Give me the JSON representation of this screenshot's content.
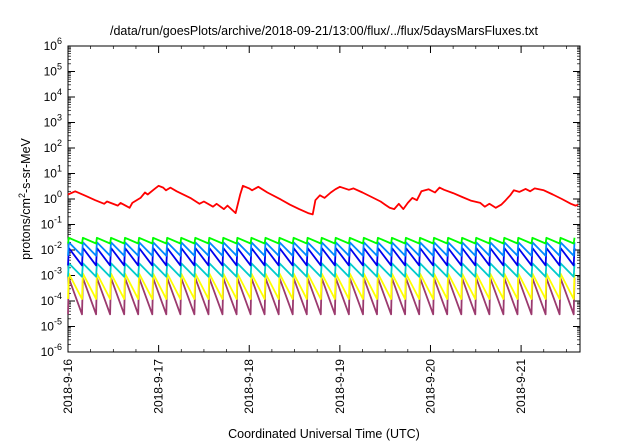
{
  "chart_data": {
    "type": "line",
    "title": "/data/run/goesPlots/archive/2018-09-21/13:00/flux/../flux/5daysMarsFluxes.txt",
    "xlabel": "Coordinated Universal Time (UTC)",
    "ylabel": "protons/cm²-s-sr-MeV",
    "y_scale": "log",
    "ylim": [
      1e-06,
      1000000.0
    ],
    "y_ticks": [
      {
        "base": "10",
        "exp": "-6",
        "value": 1e-06
      },
      {
        "base": "10",
        "exp": "-5",
        "value": 1e-05
      },
      {
        "base": "10",
        "exp": "-4",
        "value": 0.0001
      },
      {
        "base": "10",
        "exp": "-3",
        "value": 0.001
      },
      {
        "base": "10",
        "exp": "-2",
        "value": 0.01
      },
      {
        "base": "10",
        "exp": "-1",
        "value": 0.1
      },
      {
        "base": "10",
        "exp": "0",
        "value": 1
      },
      {
        "base": "10",
        "exp": "1",
        "value": 10
      },
      {
        "base": "10",
        "exp": "2",
        "value": 100
      },
      {
        "base": "10",
        "exp": "3",
        "value": 1000
      },
      {
        "base": "10",
        "exp": "4",
        "value": 10000
      },
      {
        "base": "10",
        "exp": "5",
        "value": 100000
      },
      {
        "base": "10",
        "exp": "6",
        "value": 1000000
      }
    ],
    "x_ticks": [
      "2018-9-16",
      "2018-9-17",
      "2018-9-18",
      "2018-9-19",
      "2018-9-20",
      "2018-9-21"
    ],
    "x_domain_days": [
      0,
      5.65
    ],
    "grid": false,
    "series": [
      {
        "color": "#ff0000",
        "points": [
          [
            0.0,
            1.5
          ],
          [
            0.08,
            2.0
          ],
          [
            0.2,
            1.3
          ],
          [
            0.3,
            0.9
          ],
          [
            0.4,
            0.65
          ],
          [
            0.43,
            0.8
          ],
          [
            0.55,
            0.55
          ],
          [
            0.58,
            0.7
          ],
          [
            0.68,
            0.45
          ],
          [
            0.71,
            0.7
          ],
          [
            0.8,
            1.1
          ],
          [
            0.85,
            1.8
          ],
          [
            0.88,
            1.5
          ],
          [
            0.95,
            2.4
          ],
          [
            1.0,
            3.3
          ],
          [
            1.05,
            2.8
          ],
          [
            1.08,
            2.2
          ],
          [
            1.13,
            2.8
          ],
          [
            1.2,
            2.0
          ],
          [
            1.35,
            1.1
          ],
          [
            1.45,
            0.65
          ],
          [
            1.5,
            0.8
          ],
          [
            1.6,
            0.5
          ],
          [
            1.64,
            0.65
          ],
          [
            1.72,
            0.4
          ],
          [
            1.76,
            0.55
          ],
          [
            1.85,
            0.28
          ],
          [
            1.9,
            1.5
          ],
          [
            1.93,
            3.3
          ],
          [
            2.0,
            2.6
          ],
          [
            2.03,
            2.2
          ],
          [
            2.1,
            3.0
          ],
          [
            2.2,
            1.8
          ],
          [
            2.35,
            0.95
          ],
          [
            2.45,
            0.6
          ],
          [
            2.55,
            0.4
          ],
          [
            2.65,
            0.28
          ],
          [
            2.7,
            0.25
          ],
          [
            2.73,
            0.9
          ],
          [
            2.78,
            1.4
          ],
          [
            2.83,
            1.1
          ],
          [
            2.9,
            1.8
          ],
          [
            2.95,
            2.4
          ],
          [
            3.0,
            3.0
          ],
          [
            3.1,
            2.3
          ],
          [
            3.15,
            2.6
          ],
          [
            3.25,
            1.8
          ],
          [
            3.35,
            1.2
          ],
          [
            3.45,
            0.8
          ],
          [
            3.5,
            0.6
          ],
          [
            3.55,
            0.45
          ],
          [
            3.6,
            0.4
          ],
          [
            3.65,
            0.65
          ],
          [
            3.7,
            0.4
          ],
          [
            3.75,
            0.7
          ],
          [
            3.8,
            1.1
          ],
          [
            3.85,
            0.9
          ],
          [
            3.9,
            2.0
          ],
          [
            3.98,
            2.4
          ],
          [
            4.05,
            1.8
          ],
          [
            4.1,
            2.8
          ],
          [
            4.15,
            2.3
          ],
          [
            4.25,
            1.7
          ],
          [
            4.35,
            1.2
          ],
          [
            4.45,
            0.85
          ],
          [
            4.55,
            0.7
          ],
          [
            4.6,
            0.5
          ],
          [
            4.65,
            0.65
          ],
          [
            4.72,
            0.45
          ],
          [
            4.78,
            0.6
          ],
          [
            4.83,
            0.9
          ],
          [
            4.88,
            1.4
          ],
          [
            4.92,
            2.2
          ],
          [
            4.98,
            1.9
          ],
          [
            5.05,
            2.5
          ],
          [
            5.1,
            2.0
          ],
          [
            5.15,
            2.6
          ],
          [
            5.25,
            2.2
          ],
          [
            5.35,
            1.5
          ],
          [
            5.45,
            1.0
          ],
          [
            5.55,
            0.65
          ],
          [
            5.6,
            0.55
          ],
          [
            5.63,
            0.6
          ]
        ]
      },
      {
        "color": "#00ff00",
        "sawtooth": {
          "peak": 0.03,
          "trough": 0.018,
          "period": 0.155
        }
      },
      {
        "color": "#0088ff",
        "sawtooth": {
          "peak": 0.02,
          "trough": 0.006,
          "period": 0.155
        }
      },
      {
        "color": "#0000ee",
        "sawtooth": {
          "peak": 0.012,
          "trough": 0.0025,
          "period": 0.155
        }
      },
      {
        "color": "#00cccc",
        "sawtooth": {
          "peak": 0.003,
          "trough": 0.0009,
          "period": 0.155
        }
      },
      {
        "color": "#ffff00",
        "sawtooth": {
          "peak": 0.0012,
          "trough": 0.00012,
          "period": 0.155
        }
      },
      {
        "color": "#9b3a6e",
        "sawtooth": {
          "peak": 0.0008,
          "trough": 3e-05,
          "period": 0.155
        }
      }
    ]
  }
}
